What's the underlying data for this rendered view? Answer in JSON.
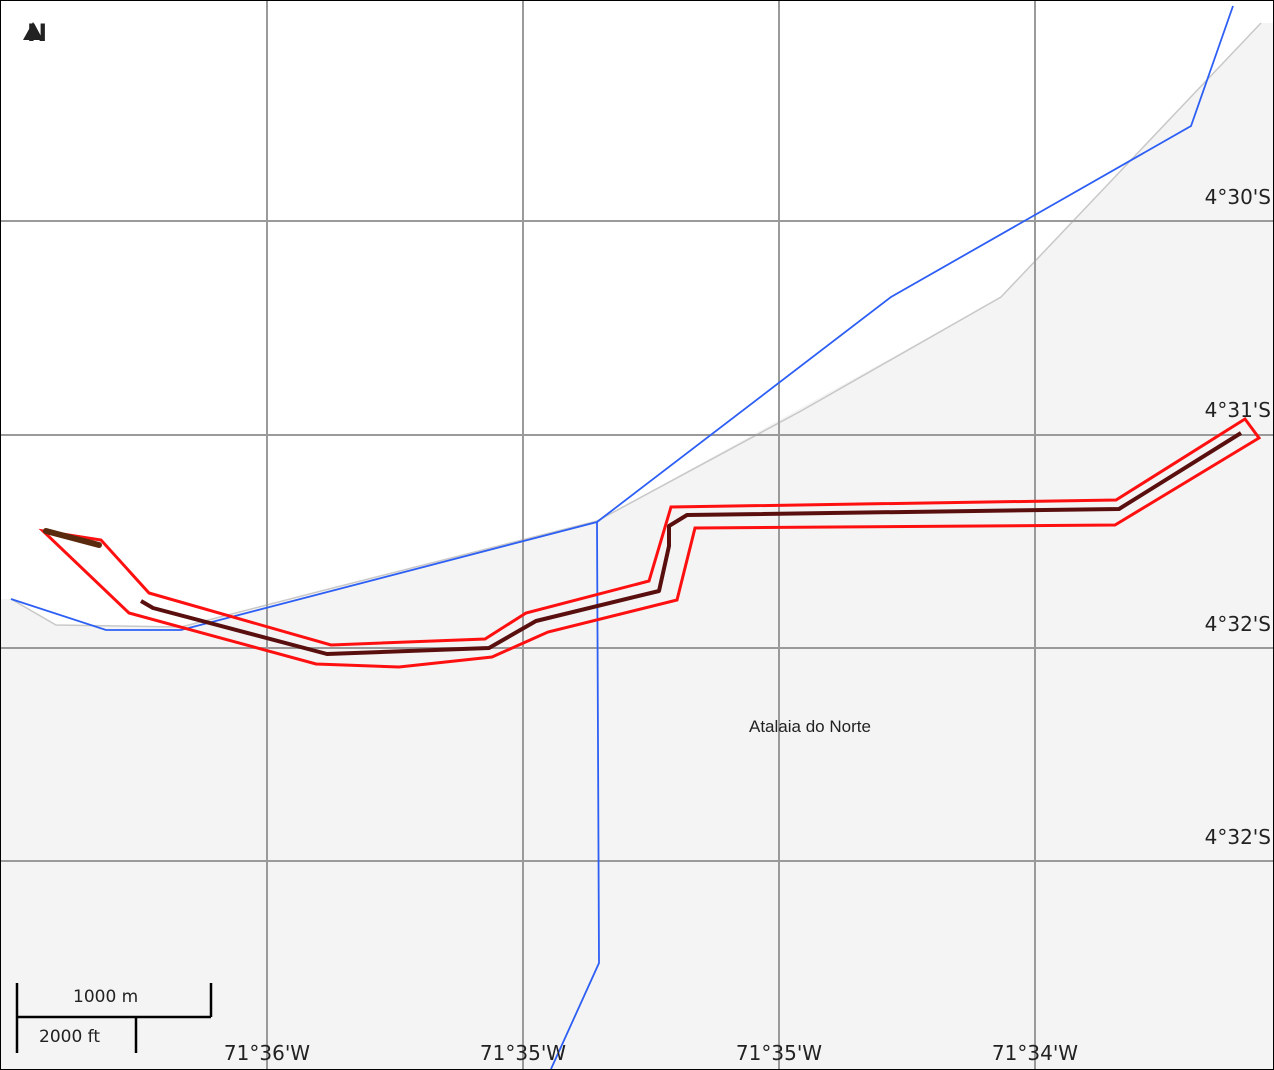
{
  "map": {
    "north_label": "N",
    "place_name": "Atalaia do Norte",
    "latitude_labels": [
      "4°30'S",
      "4°31'S",
      "4°32'S",
      "4°32'S"
    ],
    "longitude_labels": [
      "71°36'W",
      "71°35'W",
      "71°35'W",
      "71°34'W"
    ],
    "scale": {
      "metric_label": "1000 m",
      "imperial_label": "2000 ft"
    },
    "colors": {
      "land": "#f4f4f4",
      "water": "#ffffff",
      "grid": "#999999",
      "boundary": "#2d5ff5",
      "route_outline": "#ff0000",
      "route_core": "#5a0f0f",
      "shore": "#c8c8c8"
    }
  }
}
